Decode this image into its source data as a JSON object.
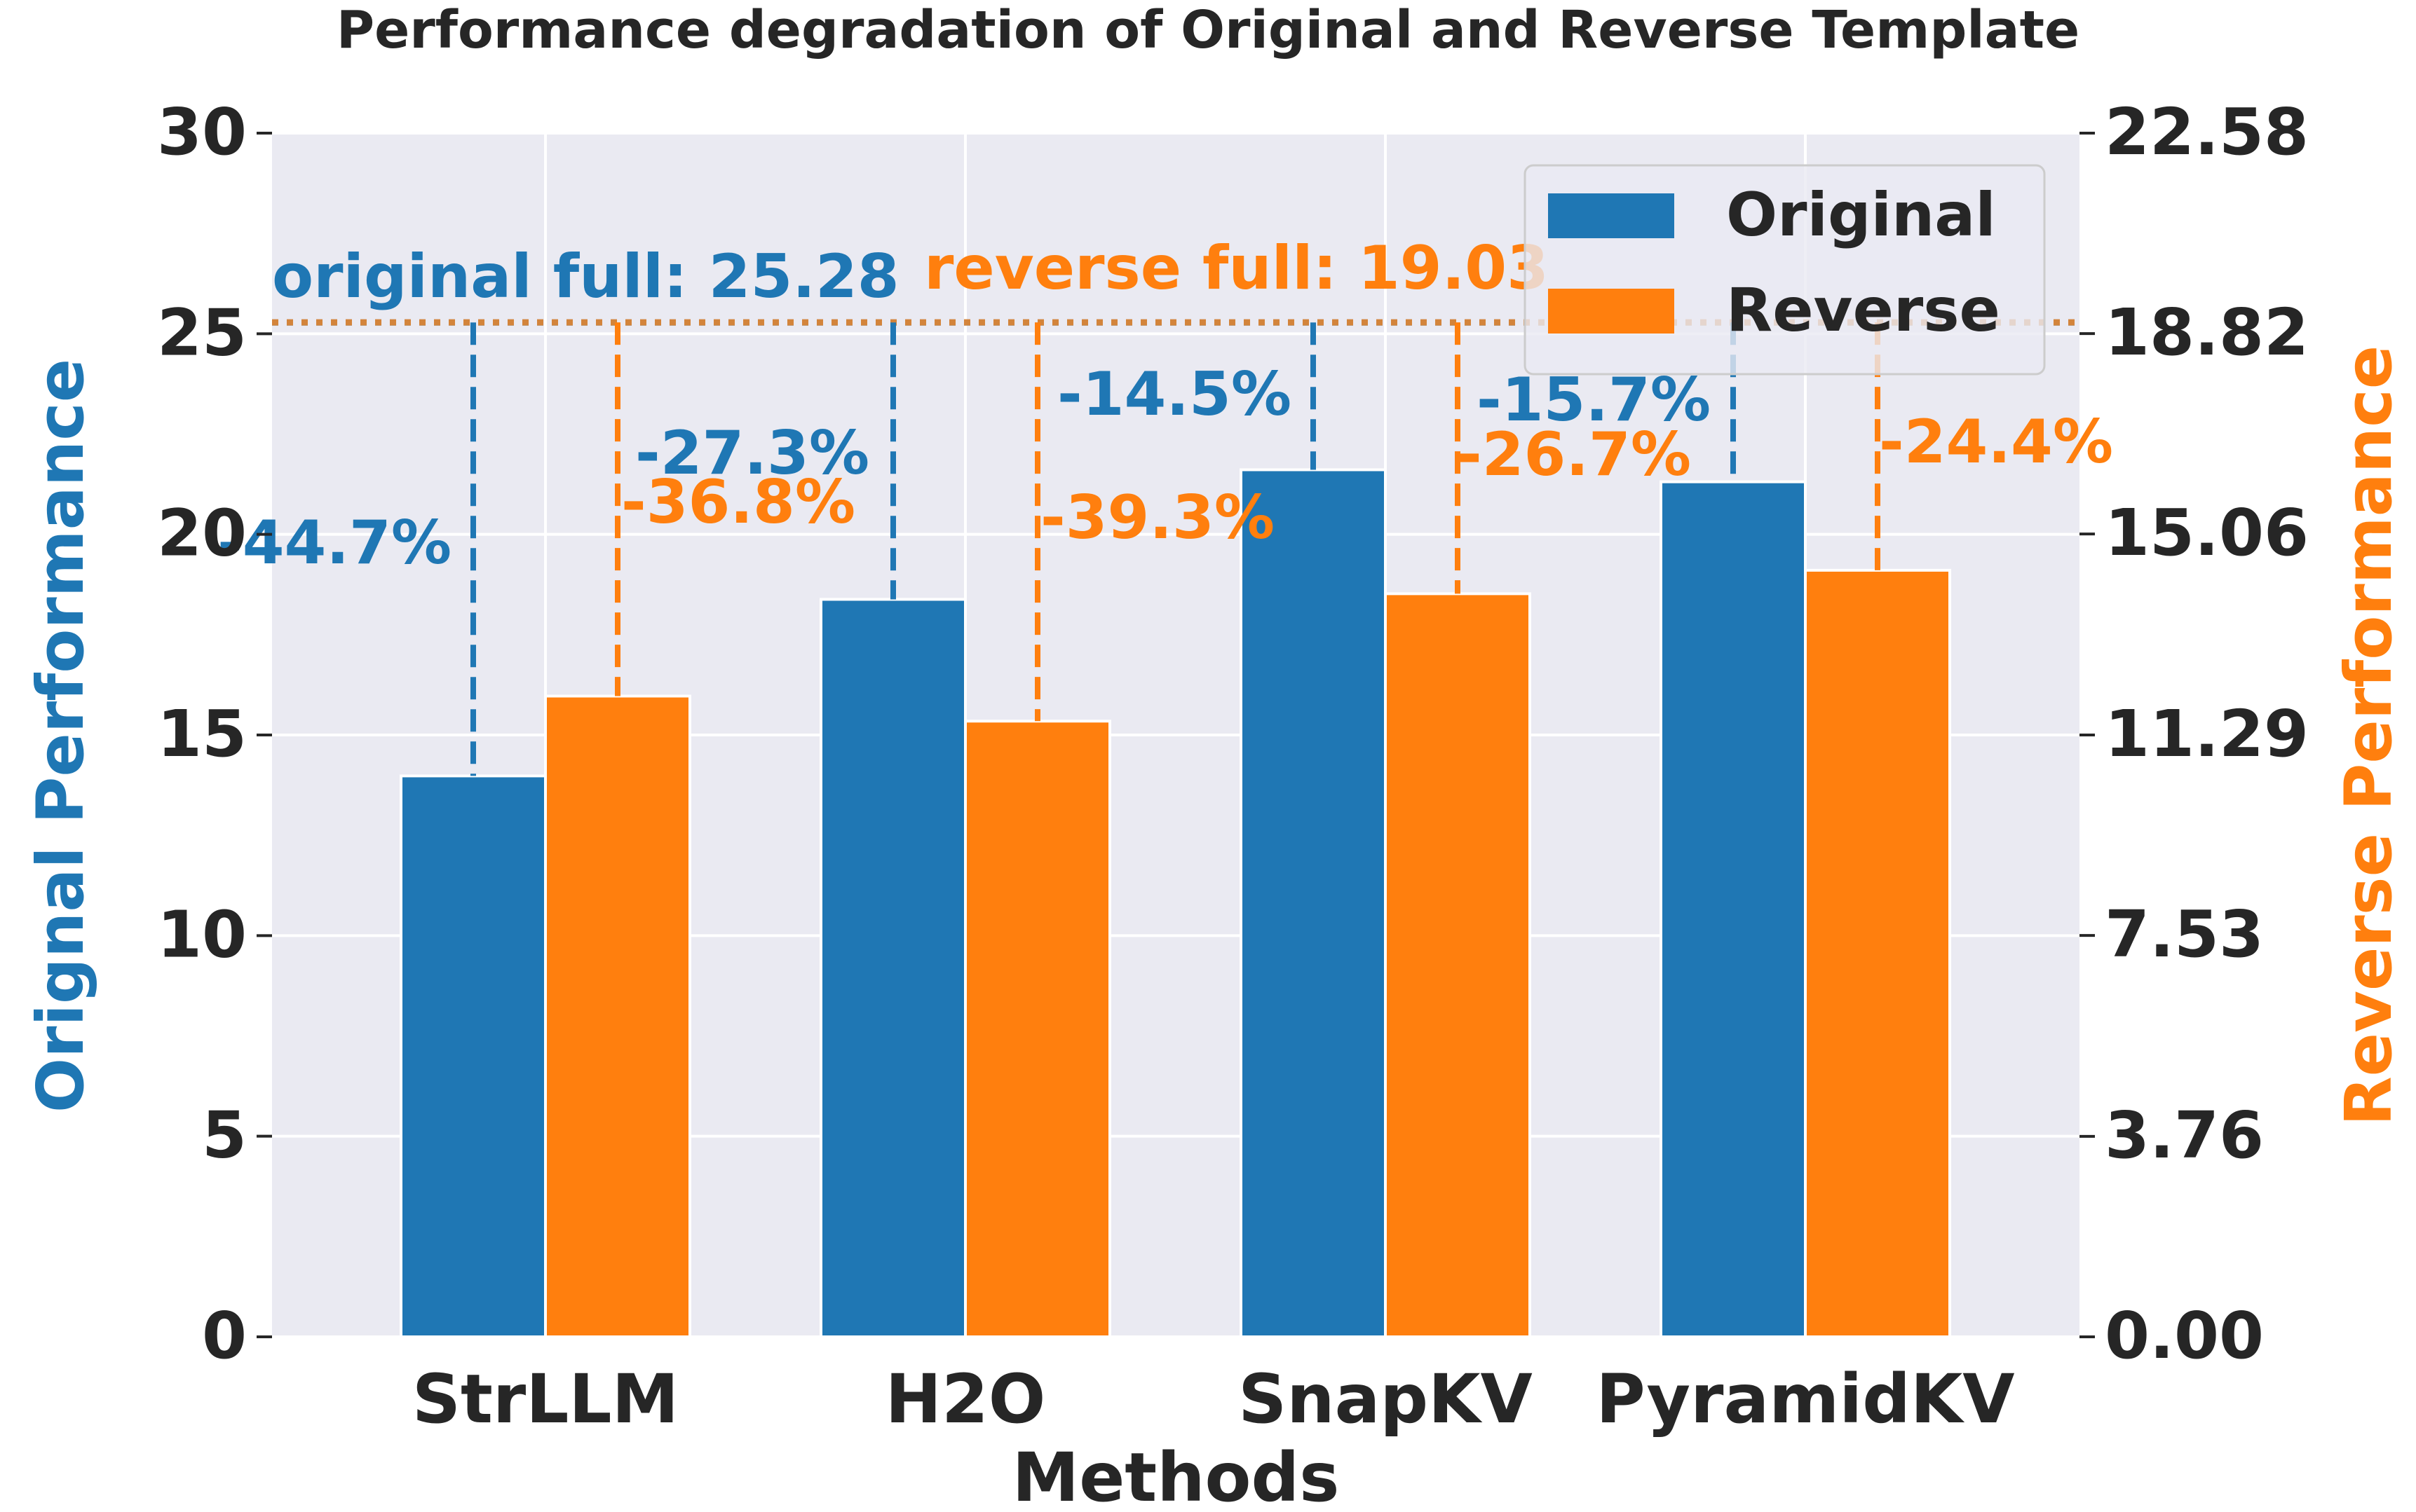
{
  "chart_data": {
    "type": "bar",
    "title": "Performance degradation of Original and Reverse Template",
    "xlabel": "Methods",
    "ylabel_left": "Orignal Performance",
    "ylabel_right": "Reverse Performance",
    "categories": [
      "StrLLM",
      "H2O",
      "SnapKV",
      "PyramidKV"
    ],
    "ylim": [
      0,
      30
    ],
    "ylim_right": [
      0,
      22.58
    ],
    "yticks_left": [
      "0",
      "5",
      "10",
      "15",
      "20",
      "25",
      "30"
    ],
    "yticks_right": [
      "0.00",
      "3.76",
      "7.53",
      "11.29",
      "15.06",
      "18.82",
      "22.58"
    ],
    "grid": true,
    "legend_position": "top-right",
    "series": [
      {
        "name": "Original",
        "axis": "left",
        "color": "#1f77b4",
        "values": [
          13.98,
          18.38,
          21.61,
          21.31
        ],
        "degradation_labels": [
          "-44.7%",
          "-27.3%",
          "-14.5%",
          "-15.7%"
        ]
      },
      {
        "name": "Reverse",
        "axis": "right",
        "color": "#ff7f0e",
        "values": [
          12.02,
          11.55,
          13.94,
          14.38
        ],
        "degradation_labels": [
          "-36.8%",
          "-39.3%",
          "-26.7%",
          "-24.4%"
        ]
      }
    ],
    "reference_lines": [
      {
        "label": "original full: 25.28",
        "value": 25.28,
        "axis": "left",
        "color": "#1f77b4"
      },
      {
        "label": "reverse full: 19.03",
        "value": 19.03,
        "axis": "right",
        "color": "#ff7f0e"
      }
    ]
  }
}
